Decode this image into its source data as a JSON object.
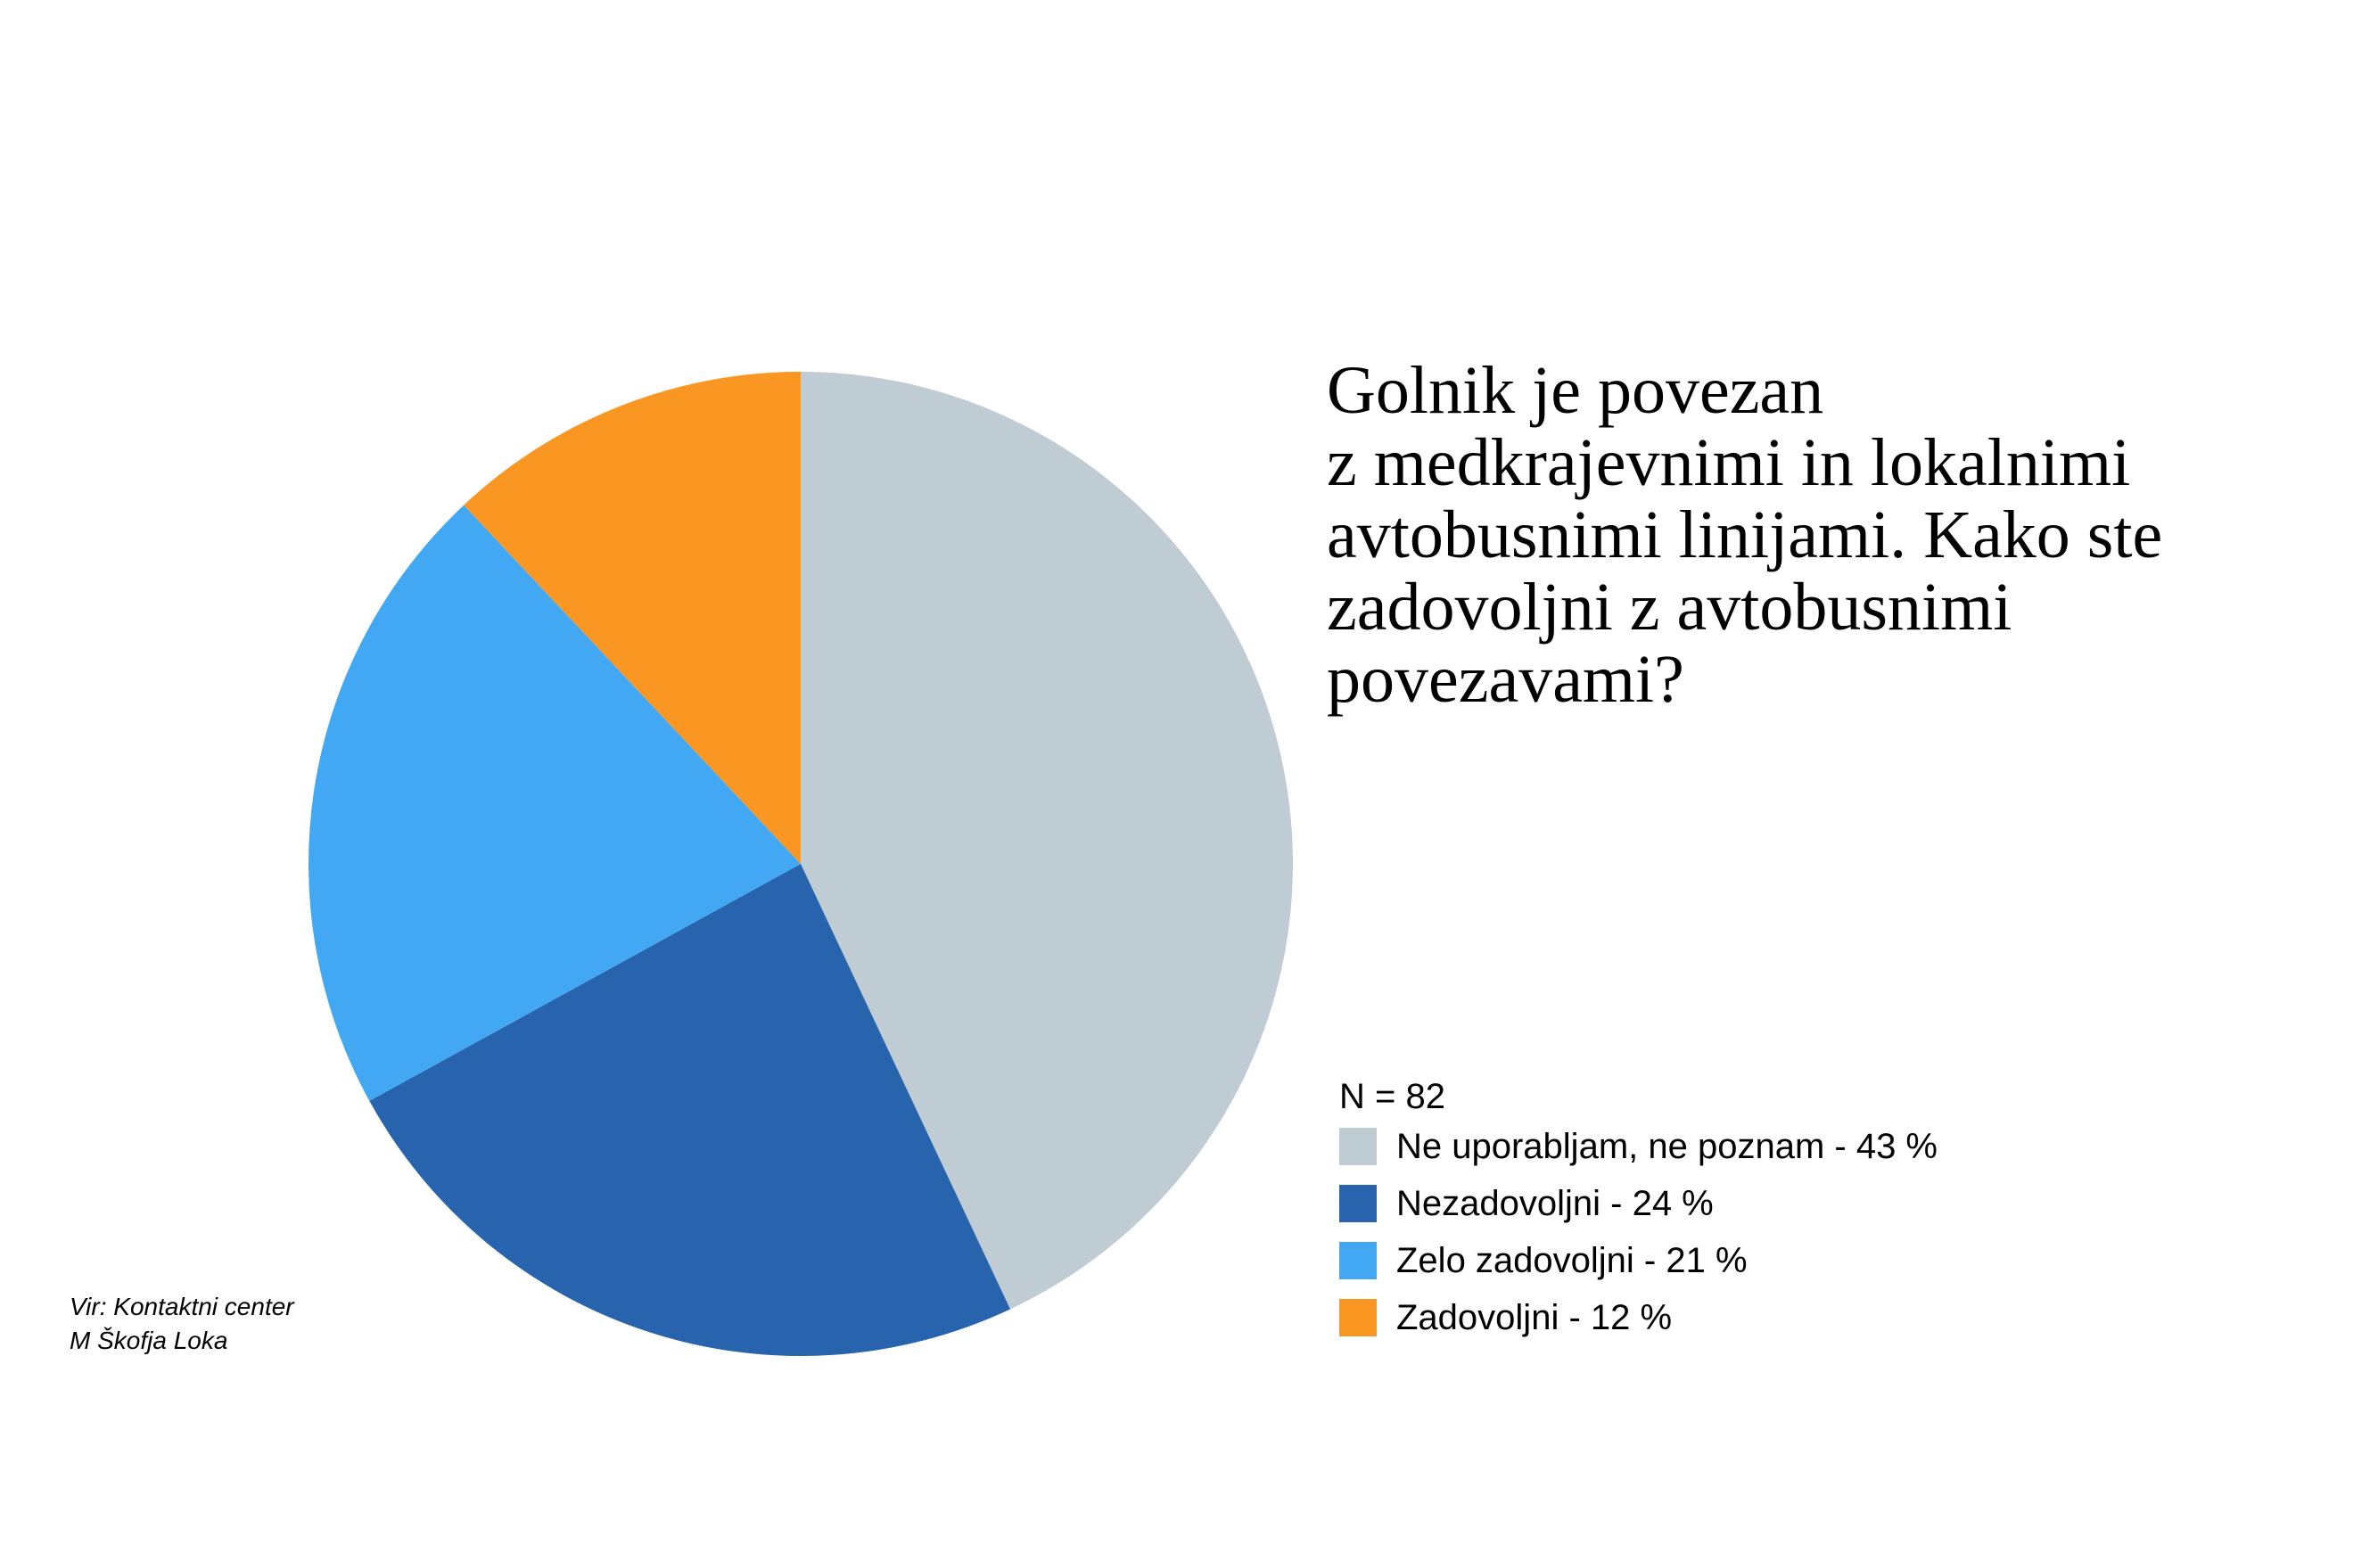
{
  "chart_data": {
    "type": "pie",
    "title_lines": [
      "Golnik je povezan",
      "z medkrajevnimi in lokalnimi",
      "avtobusnimi linijami. Kako ste",
      "zadovoljni z avtobusnimi",
      "povezavami?"
    ],
    "sample_note": "N = 82",
    "slices": [
      {
        "label": "Ne uporabljam, ne poznam - 43 %",
        "value": 43,
        "color": "#BFCCD4"
      },
      {
        "label": "Nezadovoljni - 24 %",
        "value": 24,
        "color": "#2864AD"
      },
      {
        "label": "Zelo zadovoljni - 21 %",
        "value": 21,
        "color": "#42A8F3"
      },
      {
        "label": "Zadovoljni - 12 %",
        "value": 12,
        "color": "#FA9723"
      }
    ],
    "start": "12 o'clock",
    "direction": "clockwise",
    "legend_position": "bottom-right"
  },
  "source_lines": [
    "Vir: Kontaktni center",
    "M Škofja Loka"
  ]
}
